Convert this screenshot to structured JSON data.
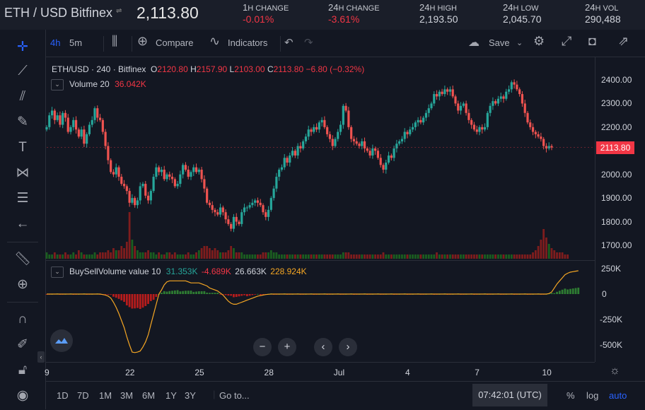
{
  "header": {
    "pair": "ETH / USD Bitfinex",
    "price": "2,113.80",
    "stats": [
      {
        "big": "1",
        "small": "H CHANGE",
        "value": "-0.01%",
        "neg": true
      },
      {
        "big": "24",
        "small": "H CHANGE",
        "value": "-3.61%",
        "neg": true
      },
      {
        "big": "24",
        "small": "H HIGH",
        "value": "2,193.50",
        "neg": false
      },
      {
        "big": "24",
        "small": "H LOW",
        "value": "2,045.70",
        "neg": false
      },
      {
        "big": "24",
        "small": "H VOL",
        "value": "290,488",
        "neg": false
      }
    ]
  },
  "toolbar": {
    "interval": "4h",
    "interval2": "5m",
    "compare": "Compare",
    "indicators": "Indicators",
    "save": "Save"
  },
  "legend": {
    "symbol": "ETH/USD · 240 · Bitfinex",
    "o_label": "O",
    "o": "2120.80",
    "h_label": "H",
    "h": "2157.90",
    "l_label": "L",
    "l": "2103.00",
    "c_label": "C",
    "c": "2113.80",
    "change": "−6.80 (−0.32%)",
    "volume_label": "Volume 20",
    "volume_value": "36.042K",
    "bsv_label": "BuySellVolume value 10",
    "bsv_v1": "31.353K",
    "bsv_v2": "-4.689K",
    "bsv_v3": "26.663K",
    "bsv_v4": "228.924K"
  },
  "colors": {
    "up": "#26a69a",
    "down": "#ef5350",
    "orange": "#f5a623",
    "green_vol": "#2e7d32",
    "red_vol": "#b71c1c"
  },
  "current_price_label": "2113.80",
  "bottom": {
    "ranges": [
      "1D",
      "7D",
      "1M",
      "3M",
      "6M",
      "1Y",
      "3Y"
    ],
    "goto": "Go to...",
    "clock": "07:42:01 (UTC)",
    "percent": "%",
    "log": "log",
    "auto": "auto"
  },
  "chart_data": {
    "type": "candlestick",
    "title": "ETH/USD · 240 · Bitfinex",
    "y_ticks": [
      2400,
      2300,
      2200,
      2100,
      2000,
      1900,
      1800,
      1700
    ],
    "y_tick_labels": [
      "2400.00",
      "2300.00",
      "2200.00",
      "2100.00",
      "2000.00",
      "1900.00",
      "1800.00",
      "1700.00"
    ],
    "ylim": [
      1640,
      2440
    ],
    "x_tick_labels": [
      "9",
      "22",
      "25",
      "28",
      "Jul",
      "4",
      "7",
      "10"
    ],
    "x_tick_index": [
      0,
      31,
      57,
      83,
      109,
      135,
      161,
      187
    ],
    "osc_y_tick_labels": [
      "250K",
      "0",
      "-250K",
      "-500K"
    ],
    "osc_y_ticks": [
      250,
      0,
      -250,
      -500
    ],
    "osc_ylim": [
      -600,
      300
    ],
    "candles_close": [
      2200,
      2250,
      2270,
      2230,
      2250,
      2210,
      2260,
      2240,
      2180,
      2200,
      2230,
      2190,
      2160,
      2190,
      2130,
      2170,
      2210,
      2230,
      2280,
      2240,
      2230,
      2180,
      2120,
      2060,
      2010,
      2000,
      2030,
      1990,
      1960,
      1950,
      1930,
      1880,
      1900,
      1870,
      1890,
      1950,
      1960,
      1910,
      1890,
      1930,
      1990,
      2030,
      2010,
      2020,
      1980,
      2000,
      1990,
      1980,
      1950,
      1960,
      2000,
      2040,
      2020,
      1990,
      2010,
      2030,
      2010,
      2020,
      1980,
      1940,
      1880,
      1870,
      1850,
      1840,
      1830,
      1860,
      1840,
      1810,
      1790,
      1770,
      1820,
      1800,
      1790,
      1840,
      1860,
      1860,
      1870,
      1880,
      1890,
      1880,
      1870,
      1840,
      1820,
      1850,
      1900,
      1940,
      1990,
      2020,
      2030,
      2070,
      2050,
      2080,
      2100,
      2080,
      2120,
      2110,
      2140,
      2160,
      2190,
      2180,
      2200,
      2190,
      2220,
      2230,
      2200,
      2170,
      2150,
      2120,
      2150,
      2180,
      2210,
      2290,
      2270,
      2200,
      2150,
      2140,
      2130,
      2120,
      2140,
      2110,
      2100,
      2080,
      2110,
      2100,
      2070,
      2040,
      2020,
      2050,
      2080,
      2070,
      2110,
      2130,
      2140,
      2150,
      2180,
      2170,
      2190,
      2200,
      2220,
      2230,
      2220,
      2240,
      2260,
      2280,
      2300,
      2340,
      2330,
      2350,
      2340,
      2360,
      2350,
      2360,
      2330,
      2300,
      2270,
      2290,
      2300,
      2260,
      2230,
      2210,
      2190,
      2180,
      2200,
      2190,
      2200,
      2260,
      2290,
      2310,
      2300,
      2320,
      2330,
      2320,
      2350,
      2360,
      2390,
      2380,
      2360,
      2340,
      2300,
      2260,
      2220,
      2200,
      2180,
      2170,
      2160,
      2150,
      2120,
      2110,
      2120,
      2113.8
    ],
    "volume": [
      3,
      2,
      2,
      3,
      2,
      2,
      2,
      3,
      2,
      2,
      3,
      2,
      4,
      3,
      2,
      2,
      2,
      2,
      3,
      2,
      3,
      3,
      3,
      4,
      3,
      5,
      4,
      4,
      6,
      5,
      8,
      22,
      9,
      6,
      4,
      3,
      3,
      3,
      4,
      3,
      3,
      2,
      3,
      2,
      2,
      3,
      3,
      2,
      3,
      2,
      2,
      2,
      2,
      3,
      2,
      2,
      3,
      4,
      5,
      6,
      6,
      5,
      4,
      5,
      4,
      3,
      3,
      3,
      4,
      6,
      5,
      3,
      3,
      3,
      2,
      2,
      2,
      2,
      2,
      2,
      2,
      3,
      3,
      3,
      4,
      3,
      3,
      2,
      2,
      2,
      2,
      2,
      2,
      2,
      2,
      2,
      2,
      2,
      2,
      2,
      2,
      2,
      2,
      2,
      2,
      2,
      2,
      2,
      2,
      2,
      2,
      3,
      3,
      3,
      2,
      2,
      2,
      2,
      2,
      2,
      2,
      2,
      2,
      2,
      2,
      2,
      3,
      2,
      2,
      2,
      2,
      2,
      2,
      2,
      2,
      2,
      2,
      2,
      2,
      2,
      2,
      2,
      2,
      2,
      2,
      2,
      3,
      2,
      2,
      2,
      2,
      2,
      2,
      2,
      2,
      2,
      2,
      2,
      2,
      2,
      2,
      2,
      2,
      2,
      2,
      2,
      2,
      2,
      2,
      2,
      2,
      2,
      2,
      2,
      2,
      2,
      2,
      2,
      2,
      2,
      2,
      2,
      3,
      4,
      6,
      9,
      14,
      10,
      7,
      5,
      4,
      3,
      3,
      3,
      2,
      2
    ],
    "bsv_line": [
      0,
      0,
      0,
      0,
      0,
      0,
      0,
      0,
      0,
      0,
      0,
      0,
      0,
      0,
      0,
      0,
      0,
      0,
      0,
      0,
      0,
      -5,
      -10,
      -20,
      -40,
      -80,
      -130,
      -190,
      -260,
      -330,
      -420,
      -500,
      -570,
      -575,
      -570,
      -560,
      -520,
      -470,
      -400,
      -300,
      -200,
      -100,
      0,
      40,
      90,
      120,
      130,
      130,
      130,
      130,
      130,
      130,
      130,
      120,
      110,
      110,
      110,
      110,
      100,
      90,
      80,
      60,
      50,
      40,
      30,
      10,
      -10,
      -40,
      -70,
      -90,
      -100,
      -100,
      -90,
      -80,
      -70,
      -60,
      -50,
      -40,
      -30,
      -20,
      -15,
      -10,
      -5,
      -2,
      0,
      0,
      0,
      0,
      0,
      0,
      0,
      0,
      0,
      0,
      0,
      0,
      0,
      0,
      0,
      0,
      0,
      0,
      0,
      0,
      0,
      0,
      0,
      0,
      0,
      0,
      0,
      0,
      0,
      0,
      0,
      0,
      0,
      0,
      0,
      0,
      0,
      0,
      0,
      0,
      0,
      0,
      0,
      0,
      0,
      0,
      0,
      0,
      0,
      0,
      0,
      0,
      0,
      0,
      0,
      0,
      0,
      0,
      0,
      0,
      0,
      0,
      0,
      0,
      0,
      0,
      0,
      0,
      0,
      0,
      0,
      0,
      0,
      0,
      0,
      0,
      0,
      0,
      0,
      0,
      0,
      0,
      0,
      0,
      0,
      0,
      0,
      0,
      0,
      0,
      0,
      0,
      0,
      0,
      0,
      0,
      0,
      0,
      0,
      0,
      0,
      0,
      0,
      0,
      5,
      20,
      60,
      100,
      130,
      160,
      190,
      205,
      215,
      220,
      225,
      229
    ]
  }
}
